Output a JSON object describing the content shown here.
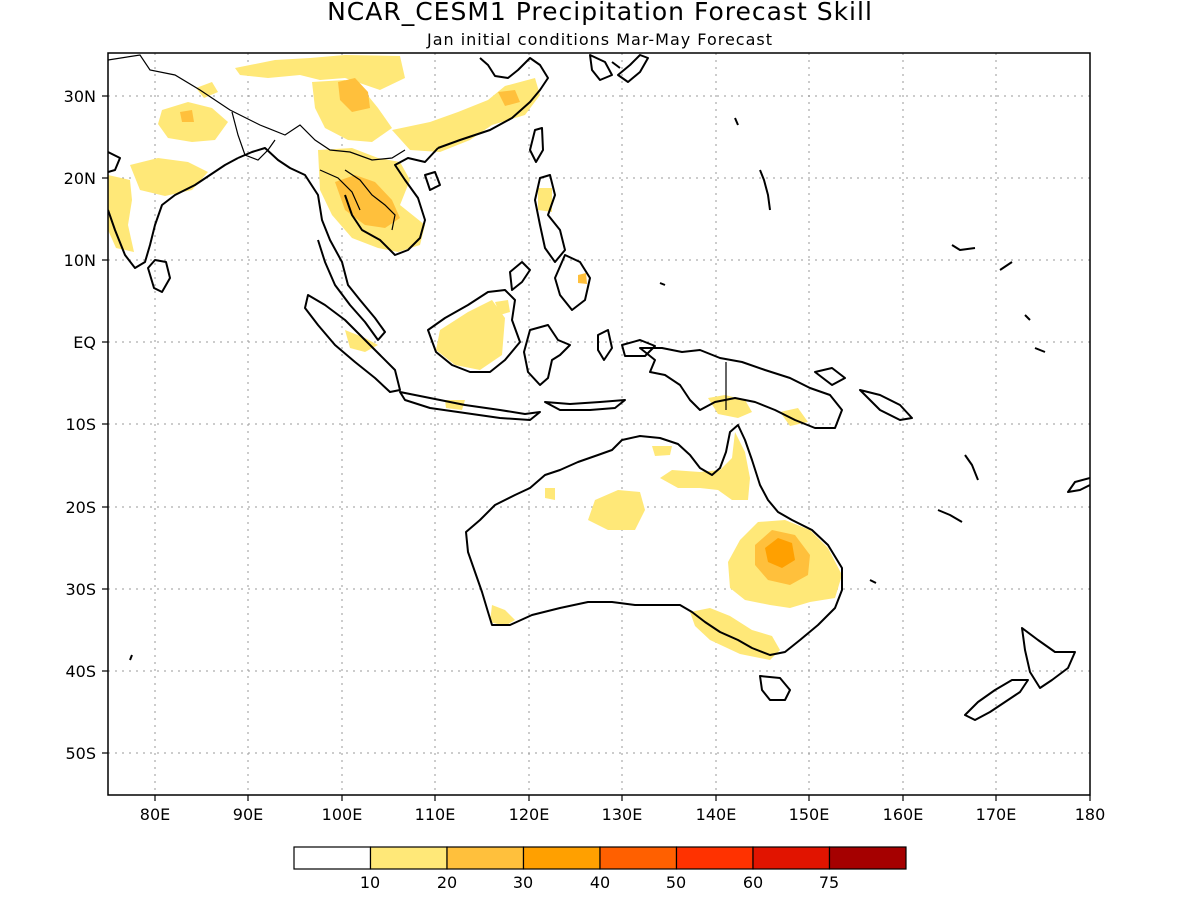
{
  "title": "NCAR_CESM1 Precipitation Forecast Skill",
  "subtitle": "Jan initial conditions  Mar-May Forecast",
  "map": {
    "x_tick_labels": [
      "80E",
      "90E",
      "100E",
      "110E",
      "120E",
      "130E",
      "140E",
      "150E",
      "160E",
      "170E",
      "180"
    ],
    "y_tick_labels": [
      "30N",
      "20N",
      "10N",
      "EQ",
      "10S",
      "20S",
      "30S",
      "40S",
      "50S"
    ],
    "lon_range": [
      75,
      180
    ],
    "lat_range": [
      -55,
      35
    ],
    "grid": true
  },
  "legend": {
    "colors": [
      "#ffffff",
      "#ffe878",
      "#ffc03c",
      "#ffa000",
      "#ff6000",
      "#ff3200",
      "#e11400",
      "#a50000"
    ],
    "labels": [
      "10",
      "20",
      "30",
      "40",
      "50",
      "60",
      "75"
    ]
  }
}
